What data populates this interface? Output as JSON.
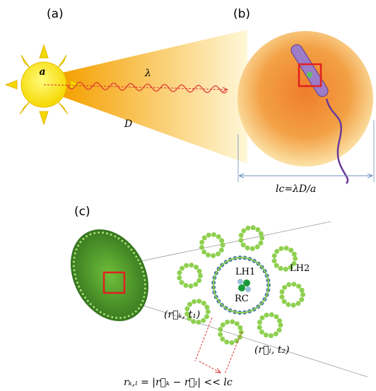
{
  "panels": {
    "a": {
      "label": "(a)",
      "sun_label": "a",
      "wavelength": "λ",
      "distance": "D"
    },
    "b": {
      "label": "(b)",
      "coherence": "lc=λD/a"
    },
    "c": {
      "label": "(c)",
      "lh1": "LH1",
      "lh2": "LH2",
      "rc": "RC",
      "point_k": "(r⃗ₖ, t₁)",
      "point_l": "(r⃗ₗ, t₂)",
      "condition": "rₖ,ₗ = |r⃗ₖ − r⃗ₗ| << lc"
    }
  }
}
